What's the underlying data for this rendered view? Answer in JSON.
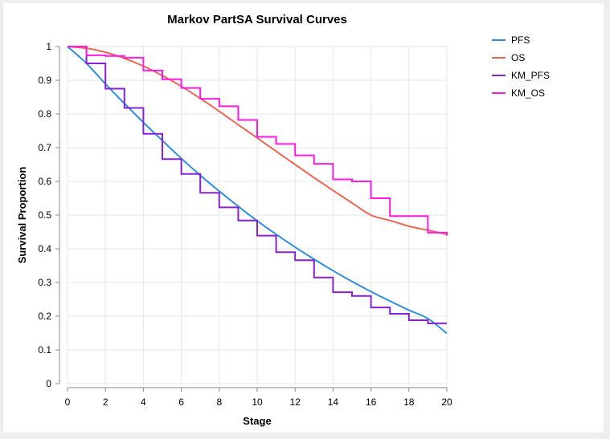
{
  "chart_data": {
    "type": "line",
    "title": "Markov PartSA Survival Curves",
    "xlabel": "Stage",
    "ylabel": "Survival Proportion",
    "xlim": [
      0,
      20
    ],
    "ylim": [
      0,
      1
    ],
    "xticks": [
      0,
      2,
      4,
      6,
      8,
      10,
      12,
      14,
      16,
      18,
      20
    ],
    "yticks": [
      0,
      0.1,
      0.2,
      0.3,
      0.4,
      0.5,
      0.6,
      0.7,
      0.8,
      0.9,
      1
    ],
    "grid": true,
    "legend_position": "right",
    "series": [
      {
        "name": "PFS",
        "kind": "line",
        "color": "#2a8fe8",
        "x": [
          0,
          1,
          2,
          3,
          4,
          5,
          6,
          7,
          8,
          9,
          10,
          11,
          12,
          13,
          14,
          15,
          16,
          17,
          18,
          19,
          20
        ],
        "y": [
          1,
          0.95,
          0.889,
          0.831,
          0.775,
          0.721,
          0.668,
          0.618,
          0.571,
          0.526,
          0.483,
          0.443,
          0.405,
          0.369,
          0.335,
          0.303,
          0.273,
          0.245,
          0.218,
          0.193,
          0.149
        ]
      },
      {
        "name": "OS",
        "kind": "line",
        "color": "#f0654f",
        "x": [
          0,
          1,
          2,
          3,
          4,
          5,
          6,
          7,
          8,
          9,
          10,
          11,
          12,
          13,
          14,
          15,
          16,
          17,
          18,
          19,
          20
        ],
        "y": [
          1,
          0.995,
          0.983,
          0.965,
          0.942,
          0.914,
          0.882,
          0.846,
          0.808,
          0.768,
          0.729,
          0.689,
          0.65,
          0.611,
          0.573,
          0.536,
          0.5,
          0.484,
          0.467,
          0.455,
          0.443
        ]
      },
      {
        "name": "KM_PFS",
        "kind": "step",
        "color": "#8a1fd6",
        "x": [
          0,
          1,
          2,
          3,
          4,
          5,
          6,
          7,
          8,
          9,
          10,
          11,
          12,
          13,
          14,
          15,
          16,
          17,
          18,
          19,
          20
        ],
        "y": [
          1,
          0.95,
          0.875,
          0.818,
          0.741,
          0.666,
          0.622,
          0.566,
          0.523,
          0.484,
          0.439,
          0.39,
          0.366,
          0.315,
          0.271,
          0.26,
          0.226,
          0.207,
          0.188,
          0.179,
          0.179
        ]
      },
      {
        "name": "KM_OS",
        "kind": "step",
        "color": "#ff19e8",
        "x": [
          0,
          1,
          2,
          3,
          4,
          5,
          6,
          7,
          8,
          9,
          10,
          11,
          12,
          13,
          14,
          15,
          16,
          17,
          18,
          19,
          20
        ],
        "y": [
          1,
          0.974,
          0.972,
          0.967,
          0.929,
          0.903,
          0.877,
          0.845,
          0.823,
          0.782,
          0.732,
          0.711,
          0.677,
          0.652,
          0.606,
          0.6,
          0.55,
          0.497,
          0.497,
          0.448,
          0.439
        ]
      }
    ]
  }
}
